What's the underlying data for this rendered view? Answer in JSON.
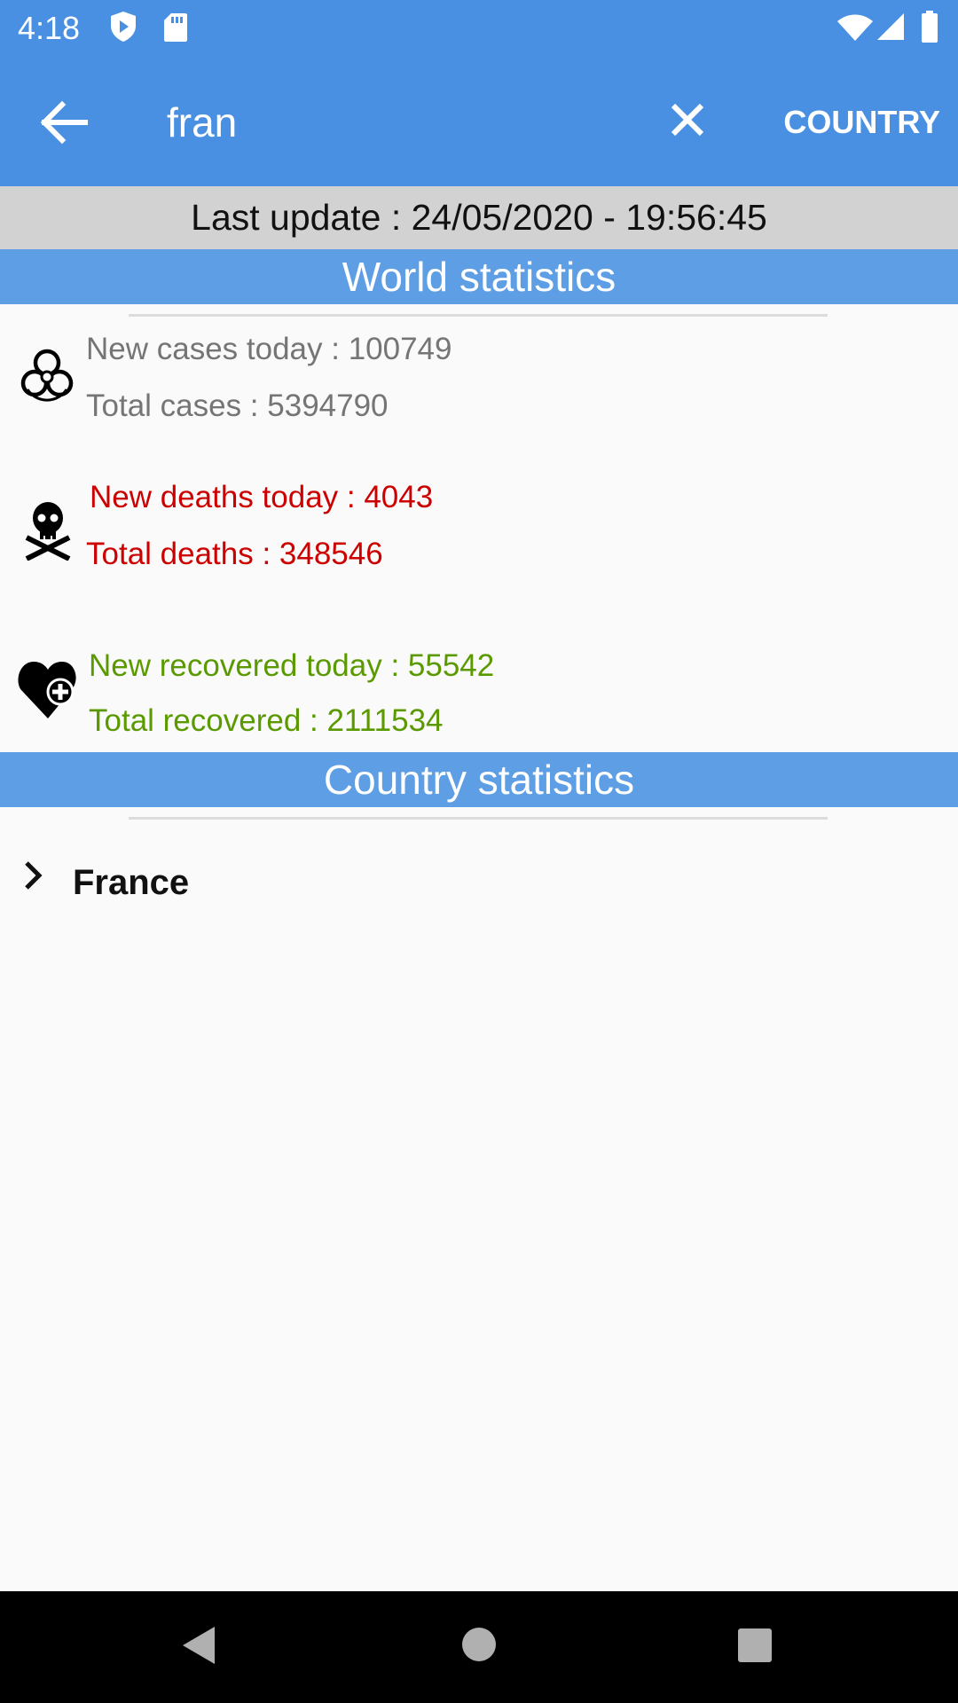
{
  "status_bar": {
    "time": "4:18",
    "icons": [
      "shield-icon",
      "sd-card-icon",
      "wifi-icon",
      "signal-icon",
      "battery-icon"
    ]
  },
  "app_bar": {
    "back_icon": "arrow-left-icon",
    "search": {
      "value": "fran",
      "placeholder": ""
    },
    "clear_icon": "close-icon",
    "action_label": "COUNTRY"
  },
  "last_update": "Last update : 24/05/2020 - 19:56:45",
  "world": {
    "title": "World statistics",
    "cases": {
      "icon": "biohazard-icon",
      "new": "New cases today : 100749",
      "total": "Total cases : 5394790"
    },
    "deaths": {
      "icon": "skull-crossbones-icon",
      "new": "New deaths today : 4043",
      "total": "Total deaths : 348546"
    },
    "recovered": {
      "icon": "heart-plus-icon",
      "new": "New recovered today : 55542",
      "total": "Total recovered : 2111534"
    }
  },
  "country": {
    "title": "Country statistics",
    "items": [
      {
        "name": "France",
        "icon": "chevron-right-icon"
      }
    ]
  },
  "colors": {
    "primary": "#4a90e2",
    "section_header": "#5e9ee4",
    "update_bar": "#d2d2d2",
    "cases": "#757575",
    "deaths": "#cc0000",
    "recovered": "#5a9a00"
  },
  "nav_bar": {
    "icons": [
      "back-triangle-icon",
      "home-circle-icon",
      "recents-square-icon"
    ]
  }
}
